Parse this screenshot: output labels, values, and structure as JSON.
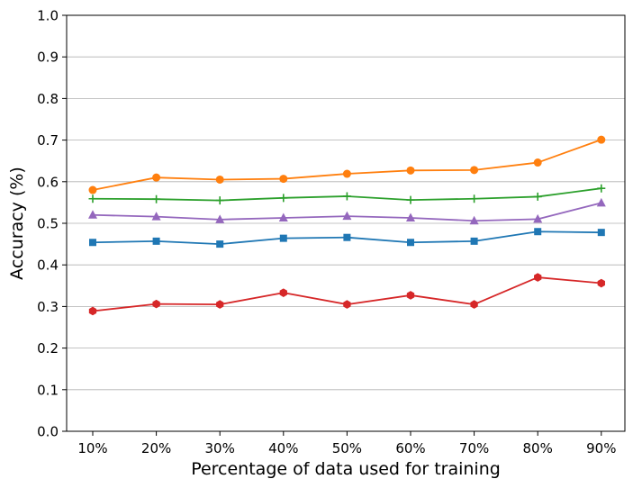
{
  "chart_data": {
    "type": "line",
    "title": "",
    "xlabel": "Percentage of data used for training",
    "ylabel": "Accuracy (%)",
    "categories": [
      "10%",
      "20%",
      "30%",
      "40%",
      "50%",
      "60%",
      "70%",
      "80%",
      "90%"
    ],
    "yticks": [
      "0.0",
      "0.1",
      "0.2",
      "0.3",
      "0.4",
      "0.5",
      "0.6",
      "0.7",
      "0.8",
      "0.9",
      "1.0"
    ],
    "ylim": [
      0,
      1
    ],
    "grid": "horizontal",
    "legend": "none",
    "series": [
      {
        "color": "#ff7f0e",
        "marker": "circle",
        "values": [
          0.58,
          0.61,
          0.605,
          0.607,
          0.619,
          0.627,
          0.628,
          0.646,
          0.701
        ]
      },
      {
        "color": "#2ca02c",
        "marker": "plus",
        "values": [
          0.559,
          0.558,
          0.555,
          0.561,
          0.565,
          0.556,
          0.559,
          0.564,
          0.584
        ]
      },
      {
        "color": "#9467bd",
        "marker": "triangle",
        "values": [
          0.52,
          0.516,
          0.509,
          0.513,
          0.517,
          0.513,
          0.506,
          0.51,
          0.549
        ]
      },
      {
        "color": "#1f77b4",
        "marker": "square",
        "values": [
          0.454,
          0.457,
          0.45,
          0.464,
          0.466,
          0.454,
          0.457,
          0.48,
          0.478
        ]
      },
      {
        "color": "#d62728",
        "marker": "hexagon",
        "values": [
          0.289,
          0.306,
          0.305,
          0.333,
          0.305,
          0.327,
          0.305,
          0.37,
          0.356
        ]
      }
    ]
  }
}
